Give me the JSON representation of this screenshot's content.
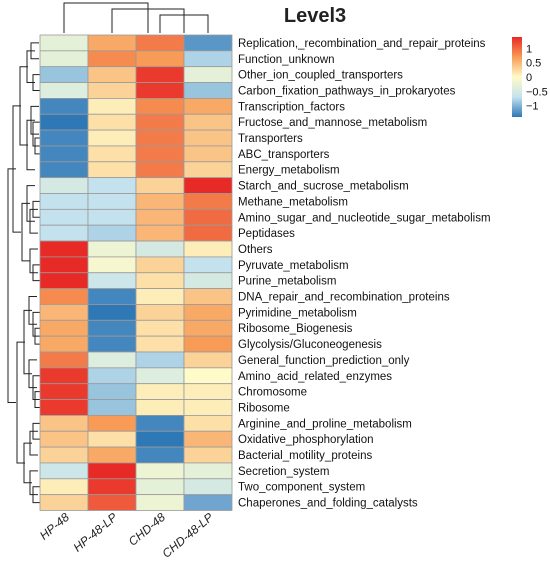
{
  "chart_data": {
    "type": "heatmap",
    "title": "Level3",
    "columns": [
      "HP-48",
      "HP-48-LP",
      "CHD-48",
      "CHD-48-LP"
    ],
    "rows": [
      "Replication,_recombination_and_repair_proteins",
      "Function_unknown",
      "Other_ion_coupled_transporters",
      "Carbon_fixation_pathways_in_prokaryotes",
      "Transcription_factors",
      "Fructose_and_mannose_metabolism",
      "Transporters",
      "ABC_transporters",
      "Energy_metabolism",
      "Starch_and_sucrose_metabolism",
      "Methane_metabolism",
      "Amino_sugar_and_nucleotide_sugar_metabolism",
      "Peptidases",
      "Others",
      "Pyruvate_metabolism",
      "Purine_metabolism",
      "DNA_repair_and_recombination_proteins",
      "Pyrimidine_metabolism",
      "Ribosome_Biogenesis",
      "Glycolysis/Gluconeogenesis",
      "General_function_prediction_only",
      "Amino_acid_related_enzymes",
      "Chromosome",
      "Ribosome",
      "Arginine_and_proline_metabolism",
      "Oxidative_phosphorylation",
      "Bacterial_motility_proteins",
      "Secretion_system",
      "Two_component_system",
      "Chaperones_and_folding_catalysts"
    ],
    "values": [
      [
        -0.3,
        0.6,
        0.9,
        -1.2
      ],
      [
        -0.3,
        0.8,
        0.7,
        -0.8
      ],
      [
        -0.9,
        0.4,
        1.3,
        -0.3
      ],
      [
        -0.4,
        0.3,
        1.3,
        -0.9
      ],
      [
        -1.3,
        0.1,
        0.8,
        0.6
      ],
      [
        -1.4,
        0.2,
        0.9,
        0.4
      ],
      [
        -1.3,
        0.1,
        0.9,
        0.4
      ],
      [
        -1.3,
        0.2,
        0.9,
        0.4
      ],
      [
        -1.3,
        0.2,
        0.9,
        0.3
      ],
      [
        -0.5,
        -0.7,
        0.3,
        1.4
      ],
      [
        -0.7,
        -0.7,
        0.5,
        0.9
      ],
      [
        -0.7,
        -0.7,
        0.5,
        1.0
      ],
      [
        -0.7,
        -0.8,
        0.5,
        1.0
      ],
      [
        1.4,
        -0.2,
        -0.5,
        0.1
      ],
      [
        1.4,
        -0.1,
        0.3,
        -0.7
      ],
      [
        1.4,
        -0.6,
        0.2,
        -0.5
      ],
      [
        0.8,
        -1.3,
        0.1,
        0.4
      ],
      [
        0.5,
        -1.4,
        0.3,
        0.6
      ],
      [
        0.6,
        -1.3,
        0.2,
        0.6
      ],
      [
        0.6,
        -1.3,
        0.2,
        0.7
      ],
      [
        0.9,
        -0.4,
        -0.8,
        0.3
      ],
      [
        1.3,
        -0.8,
        -0.4,
        0.0
      ],
      [
        1.3,
        -0.9,
        0.1,
        0.1
      ],
      [
        1.3,
        -0.9,
        0.1,
        0.1
      ],
      [
        0.4,
        0.7,
        -1.3,
        0.2
      ],
      [
        0.4,
        0.2,
        -1.4,
        0.5
      ],
      [
        0.3,
        0.6,
        -1.3,
        0.3
      ],
      [
        -0.6,
        1.4,
        -0.2,
        -0.3
      ],
      [
        0.1,
        1.3,
        -0.3,
        -0.5
      ],
      [
        0.3,
        1.1,
        -0.2,
        -1.1
      ]
    ],
    "color_scale": {
      "min": -1.4,
      "max": 1.4,
      "stops": [
        "#2f78b6",
        "#c4e2ee",
        "#fefbc9",
        "#f79b56",
        "#e82a27"
      ]
    },
    "legend_ticks": [
      1,
      0.5,
      0,
      -0.5,
      -1
    ],
    "legend_labels": [
      "1",
      "0.5",
      "0",
      "−0.5",
      "−1"
    ],
    "grid": true,
    "row_dendrogram": true,
    "column_dendrogram": true,
    "legend_placement": "top-right"
  }
}
